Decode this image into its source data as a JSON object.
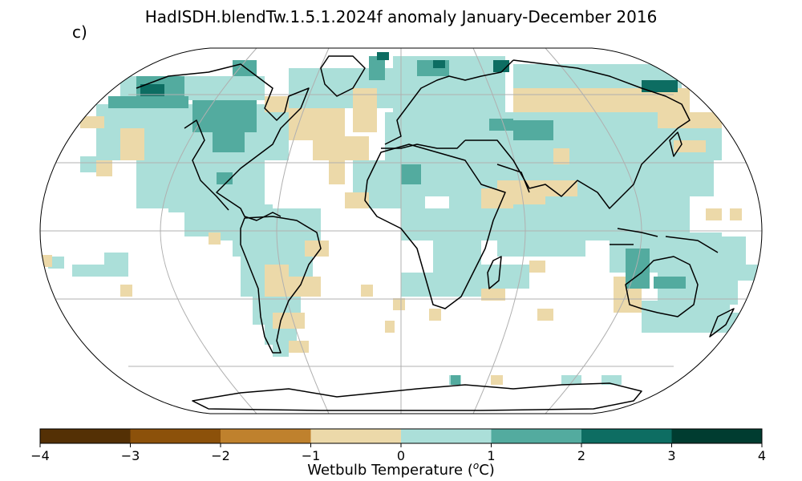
{
  "title": "HadISDH.blendTw.1.5.1.2024f anomaly January-December 2016",
  "panel_label": "c)",
  "colorbar": {
    "label": "Wetbulb Temperature (",
    "label_sup": "o",
    "label_end": "C)",
    "ticks": [
      "−4",
      "−3",
      "−2",
      "−1",
      "0",
      "1",
      "2",
      "3",
      "4"
    ],
    "bins": [
      {
        "range": [
          -4,
          -3
        ],
        "color": "#543005"
      },
      {
        "range": [
          -3,
          -2
        ],
        "color": "#8c510a"
      },
      {
        "range": [
          -2,
          -1
        ],
        "color": "#bf812d"
      },
      {
        "range": [
          -1,
          0
        ],
        "color": "#ecd9a9"
      },
      {
        "range": [
          0,
          1
        ],
        "color": "#abdfd9"
      },
      {
        "range": [
          1,
          2
        ],
        "color": "#53ab9f"
      },
      {
        "range": [
          2,
          3
        ],
        "color": "#0d6d62"
      },
      {
        "range": [
          3,
          4
        ],
        "color": "#003c30"
      }
    ]
  },
  "map": {
    "projection": "Robinson",
    "ocean_color": "#ffffff",
    "coastline_color": "#000000",
    "graticule_color": "#b0b0b0"
  }
}
